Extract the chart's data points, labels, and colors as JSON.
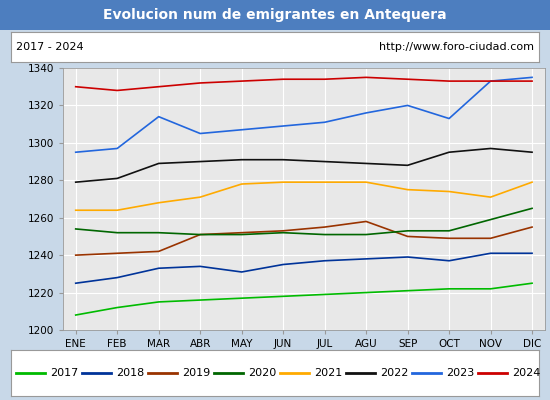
{
  "title": "Evolucion num de emigrantes en Antequera",
  "title_bg": "#4d7ebf",
  "title_color": "white",
  "subtitle_left": "2017 - 2024",
  "subtitle_right": "http://www.foro-ciudad.com",
  "months": [
    "ENE",
    "FEB",
    "MAR",
    "ABR",
    "MAY",
    "JUN",
    "JUL",
    "AGU",
    "SEP",
    "OCT",
    "NOV",
    "DIC"
  ],
  "ylim": [
    1200,
    1340
  ],
  "yticks": [
    1200,
    1220,
    1240,
    1260,
    1280,
    1300,
    1320,
    1340
  ],
  "series": {
    "2017": {
      "color": "#00bb00",
      "data": [
        1208,
        1212,
        1215,
        1216,
        1217,
        1218,
        1219,
        1220,
        1221,
        1222,
        1222,
        1225
      ]
    },
    "2018": {
      "color": "#003399",
      "data": [
        1225,
        1228,
        1233,
        1234,
        1231,
        1235,
        1237,
        1238,
        1239,
        1237,
        1241,
        1241
      ]
    },
    "2019": {
      "color": "#993300",
      "data": [
        1240,
        1241,
        1242,
        1251,
        1252,
        1253,
        1255,
        1258,
        1250,
        1249,
        1249,
        1255
      ]
    },
    "2020": {
      "color": "#006600",
      "data": [
        1254,
        1252,
        1252,
        1251,
        1251,
        1252,
        1251,
        1251,
        1253,
        1253,
        1259,
        1265
      ]
    },
    "2021": {
      "color": "#ffaa00",
      "data": [
        1264,
        1264,
        1268,
        1271,
        1278,
        1279,
        1279,
        1279,
        1275,
        1274,
        1271,
        1279
      ]
    },
    "2022": {
      "color": "#111111",
      "data": [
        1279,
        1281,
        1289,
        1290,
        1291,
        1291,
        1290,
        1289,
        1288,
        1295,
        1297,
        1295
      ]
    },
    "2023": {
      "color": "#2266dd",
      "data": [
        1295,
        1297,
        1314,
        1305,
        1307,
        1309,
        1311,
        1316,
        1320,
        1313,
        1333,
        1335
      ]
    },
    "2024": {
      "color": "#cc0000",
      "data": [
        1330,
        1328,
        1330,
        1332,
        1333,
        1334,
        1334,
        1335,
        1334,
        1333,
        1333,
        1333
      ]
    }
  },
  "legend_order": [
    "2017",
    "2018",
    "2019",
    "2020",
    "2021",
    "2022",
    "2023",
    "2024"
  ],
  "bg_color": "#ffffff",
  "plot_bg": "#e8e8e8",
  "grid_color": "#ffffff",
  "border_color": "#999999",
  "outer_bg": "#c8d8e8"
}
